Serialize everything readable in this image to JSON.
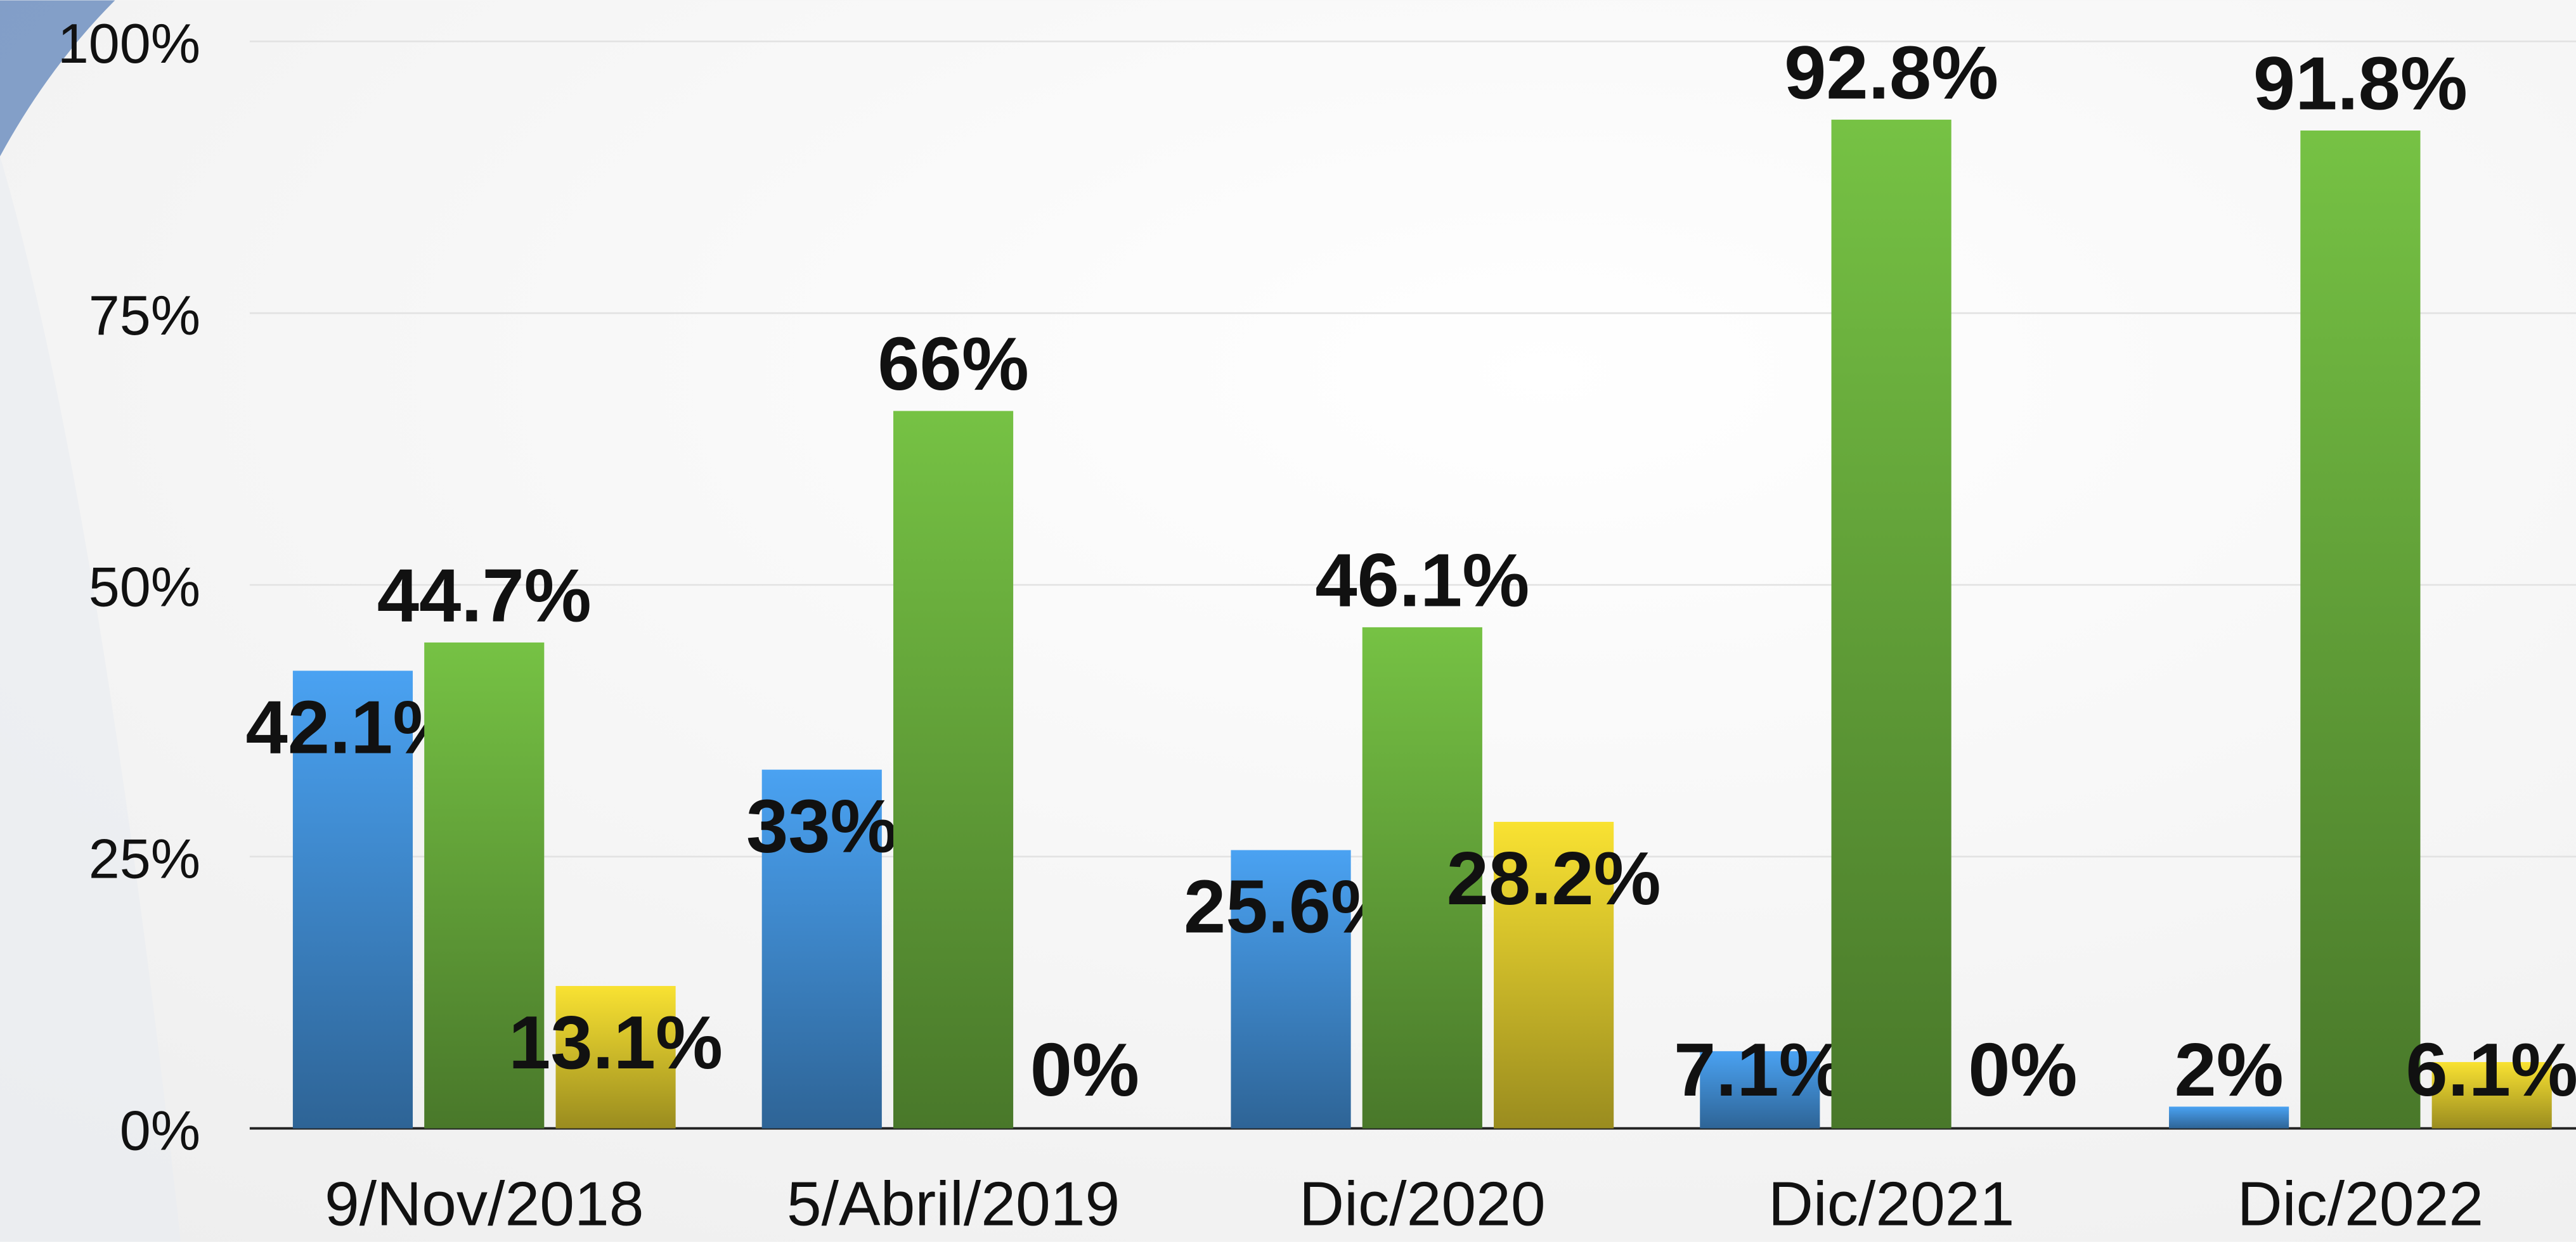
{
  "chart_data": {
    "type": "bar",
    "categories": [
      "9/Nov/2018",
      "5/Abril/2019",
      "Dic/2020",
      "Dic/2021",
      "Dic/2022"
    ],
    "series": [
      {
        "color": "#4aa2f2",
        "values": [
          42.1,
          33,
          25.6,
          7.1,
          2
        ],
        "value_labels": [
          "42.1%",
          "33%",
          "25.6%",
          "7.1%",
          "2%"
        ]
      },
      {
        "color": "#76c244",
        "values": [
          44.7,
          66,
          46.1,
          92.8,
          91.8
        ],
        "value_labels": [
          "44.7%",
          "66%",
          "46.1%",
          "92.8%",
          "91.8%"
        ]
      },
      {
        "color": "#f9e232",
        "values": [
          13.1,
          0,
          28.2,
          0,
          6.1
        ],
        "value_labels": [
          "13.1%",
          "0%",
          "28.2%",
          "0%",
          "6.1%"
        ]
      }
    ],
    "ylim": [
      0,
      100
    ],
    "yticks": [
      {
        "value": 0,
        "label": "0%"
      },
      {
        "value": 25,
        "label": "25%"
      },
      {
        "value": 50,
        "label": "50%"
      },
      {
        "value": 75,
        "label": "75%"
      },
      {
        "value": 100,
        "label": "100%"
      }
    ],
    "grid": true
  }
}
